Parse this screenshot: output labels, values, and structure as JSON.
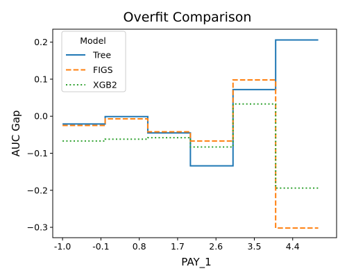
{
  "chart_data": {
    "type": "line",
    "title": "Overfit Comparison",
    "xlabel": "PAY_1",
    "ylabel": "AUC Gap",
    "x_tick_labels": [
      "-1.0",
      "-0.1",
      "0.8",
      "1.7",
      "2.6",
      "3.5",
      "4.4"
    ],
    "x_ticks": [
      -1.0,
      -0.1,
      0.8,
      1.7,
      2.6,
      3.5,
      4.4
    ],
    "y_ticks": [
      0.2,
      0.1,
      0.0,
      -0.1,
      -0.2,
      -0.3
    ],
    "y_tick_labels": [
      "0.2",
      "0.1",
      "0.0",
      "−0.1",
      "−0.2",
      "−0.3"
    ],
    "xlim": [
      -1.23,
      5.43
    ],
    "ylim": [
      -0.328,
      0.235
    ],
    "grid": false,
    "legend_title": "Model",
    "legend_position": "upper-left",
    "x": [
      -1.0,
      0.0,
      1.0,
      2.0,
      3.0,
      4.0,
      5.0
    ],
    "series": [
      {
        "name": "Tree",
        "color": "#1f77b4",
        "linestyle": "solid",
        "step": "post",
        "values": [
          -0.021,
          -0.001,
          -0.045,
          -0.134,
          0.072,
          0.206,
          0.206
        ]
      },
      {
        "name": "FIGS",
        "color": "#ff7f0e",
        "linestyle": "dashed",
        "step": "post",
        "values": [
          -0.025,
          -0.007,
          -0.042,
          -0.067,
          0.098,
          -0.302,
          -0.302
        ]
      },
      {
        "name": "XGB2",
        "color": "#2ca02c",
        "linestyle": "dotted",
        "step": "post",
        "values": [
          -0.067,
          -0.062,
          -0.058,
          -0.083,
          0.033,
          -0.194,
          -0.194
        ]
      }
    ]
  }
}
